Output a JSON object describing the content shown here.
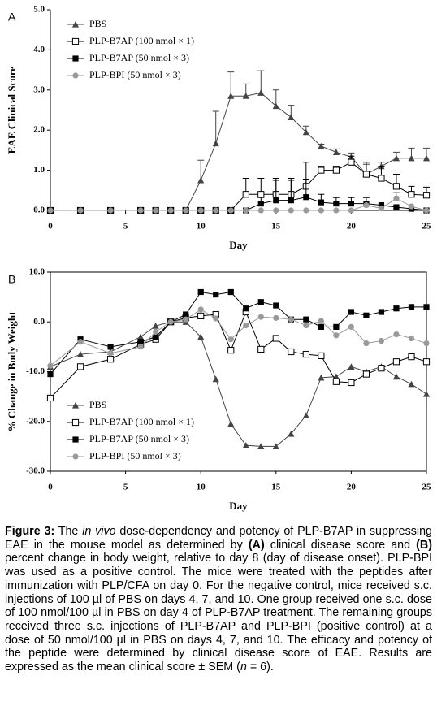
{
  "chart_data": [
    {
      "type": "line",
      "panel_label": "A",
      "ylabel": "EAE Clinical Score",
      "xlabel": "Day",
      "legend": "upper left",
      "frame": false,
      "x": [
        0,
        2,
        4,
        6,
        7,
        8,
        9,
        10,
        11,
        12,
        13,
        14,
        15,
        16,
        17,
        18,
        19,
        20,
        21,
        22,
        23,
        24,
        25
      ],
      "xlim": [
        0,
        25
      ],
      "xticks": [
        0,
        5,
        10,
        15,
        20,
        25
      ],
      "ylim": [
        0,
        5
      ],
      "yticks": [
        {
          "value": 0,
          "label": "0.0"
        },
        {
          "value": 1,
          "label": "1.0"
        },
        {
          "value": 2,
          "label": "2.0"
        },
        {
          "value": 3,
          "label": "3.0"
        },
        {
          "value": 4,
          "label": "4.0"
        },
        {
          "value": 5,
          "label": "5.0"
        }
      ],
      "series": [
        {
          "name": "PBS",
          "color": "#444444",
          "marker": "triangle",
          "values": [
            0,
            0,
            0,
            0,
            0,
            0,
            0,
            0.75,
            1.67,
            2.85,
            2.85,
            2.93,
            2.6,
            2.32,
            1.95,
            1.6,
            1.45,
            1.33,
            0.9,
            1.1,
            1.3,
            1.3,
            1.3
          ],
          "errors": [
            null,
            null,
            null,
            null,
            null,
            null,
            null,
            0.5,
            0.8,
            0.6,
            0.3,
            0.55,
            0.4,
            0.3,
            0.15,
            0.05,
            0.08,
            0.1,
            0.25,
            0.1,
            0.15,
            0.25,
            0.25
          ]
        },
        {
          "name": "PLP-B7AP (100 nmol × 1)",
          "color": "#000000",
          "marker": "square-open",
          "values": [
            0,
            0,
            0,
            0,
            0,
            0,
            0,
            0,
            0,
            0,
            0.4,
            0.4,
            0.4,
            0.4,
            0.6,
            1.0,
            1.0,
            1.2,
            0.9,
            0.8,
            0.6,
            0.4,
            0.38
          ],
          "errors": [
            null,
            null,
            null,
            null,
            null,
            null,
            null,
            null,
            null,
            null,
            0.4,
            0.4,
            0.4,
            0.4,
            0.6,
            0.1,
            0.1,
            0.15,
            0.3,
            0.3,
            0.3,
            0.2,
            0.2
          ]
        },
        {
          "name": "PLP-B7AP (50 nmol × 3)",
          "color": "#000000",
          "marker": "square",
          "values": [
            0,
            0,
            0,
            0,
            0,
            0,
            0,
            0,
            0,
            0,
            0,
            0.17,
            0.25,
            0.25,
            0.33,
            0.2,
            0.17,
            0.17,
            0.17,
            0.13,
            0.08,
            0.04,
            0
          ],
          "errors": [
            null,
            null,
            null,
            null,
            null,
            null,
            null,
            null,
            null,
            null,
            null,
            0.15,
            0.5,
            0.5,
            0.45,
            0.2,
            0.15,
            0.15,
            0.15,
            null,
            null,
            null,
            null
          ]
        },
        {
          "name": "PLP-BPI (50 nmol × 3)",
          "color": "#999999",
          "marker": "circle",
          "values": [
            0,
            0,
            0,
            0,
            0,
            0,
            0,
            0,
            0,
            0,
            0,
            0,
            0,
            0,
            0,
            0,
            0,
            0,
            0.13,
            0.05,
            0.3,
            0.1,
            0
          ],
          "errors": [
            null,
            null,
            null,
            null,
            null,
            null,
            null,
            null,
            null,
            null,
            null,
            null,
            null,
            null,
            null,
            null,
            null,
            null,
            null,
            null,
            0.15,
            null,
            null
          ]
        }
      ]
    },
    {
      "type": "line",
      "panel_label": "B",
      "ylabel": "% Change in Body Weight",
      "xlabel": "Day",
      "legend": "lower left",
      "frame": true,
      "x": [
        0,
        2,
        4,
        6,
        7,
        8,
        9,
        10,
        11,
        12,
        13,
        14,
        15,
        16,
        17,
        18,
        19,
        20,
        21,
        22,
        23,
        24,
        25
      ],
      "xlim": [
        0,
        25
      ],
      "xticks": [
        0,
        5,
        10,
        15,
        20,
        25
      ],
      "ylim": [
        -30,
        10
      ],
      "yticks": [
        {
          "value": -30,
          "label": "-30.0"
        },
        {
          "value": -20,
          "label": "-20.0"
        },
        {
          "value": -10,
          "label": "-10.0"
        },
        {
          "value": 0,
          "label": "0.0"
        },
        {
          "value": 10,
          "label": "10.0"
        }
      ],
      "series": [
        {
          "name": "PBS",
          "color": "#444444",
          "marker": "triangle",
          "values": [
            -9,
            -6.5,
            -6,
            -3,
            -0.8,
            0,
            0,
            -3,
            -11.5,
            -20.5,
            -24.8,
            -25,
            -25,
            -22.5,
            -18.8,
            -11.2,
            -11,
            -9,
            -10,
            -9,
            -11,
            -12.5,
            -14.5
          ]
        },
        {
          "name": "PLP-B7AP (100 nmol × 1)",
          "color": "#000000",
          "marker": "square-open",
          "values": [
            -15.3,
            -9,
            -7.5,
            -4.5,
            -3.5,
            0,
            0.8,
            1.2,
            1.5,
            -5.7,
            2,
            -5.5,
            -3.3,
            -6,
            -6.5,
            -6.8,
            -12,
            -12.2,
            -10.5,
            -9.3,
            -8,
            -7,
            -8
          ]
        },
        {
          "name": "PLP-B7AP (50 nmol × 3)",
          "color": "#000000",
          "marker": "square",
          "values": [
            -10.5,
            -3.5,
            -5,
            -4,
            -3,
            0,
            1.5,
            6,
            5.5,
            6,
            2.7,
            4,
            3.3,
            0.5,
            0.5,
            -1,
            -1,
            2,
            1.3,
            2,
            2.7,
            3,
            3
          ]
        },
        {
          "name": "PLP-BPI (50 nmol × 3)",
          "color": "#999999",
          "marker": "circle",
          "values": [
            -8.8,
            -4,
            -6.3,
            -5,
            -2,
            0,
            0.5,
            2.5,
            0.7,
            -3.5,
            -0.7,
            1,
            0.8,
            0.5,
            -0.7,
            0.2,
            -2.7,
            -1,
            -4.3,
            -3.8,
            -2.5,
            -3.3,
            -4.3
          ]
        }
      ]
    }
  ],
  "caption": {
    "parts": [
      "Figure 3:",
      " The ",
      "in vivo",
      " dose-dependency and potency of PLP-B7AP in suppressing EAE in the mouse model as determined by ",
      "(A)",
      " clinical disease score and ",
      "(B)",
      "  percent change in body weight, relative to day 8 (day of disease onset). PLP-BPI was used as a positive control. The mice were treated with the peptides after immunization with PLP/CFA on day 0. For the negative control, mice received s.c. injections of 100 µl of PBS on days 4, 7, and 10.  One group received one s.c. dose of 100 nmol/100 µl in PBS on day 4 of PLP-B7AP treatment. The remaining groups received three s.c. injections of PLP-B7AP and PLP-BPI (positive control) at a dose of 50 nmol/100 µl in PBS on days 4, 7, and 10.  The efficacy and potency of the peptide were determined by clinical disease score of EAE.  Results are expressed as the mean clinical score ± SEM (",
      "n",
      " = 6)."
    ]
  }
}
